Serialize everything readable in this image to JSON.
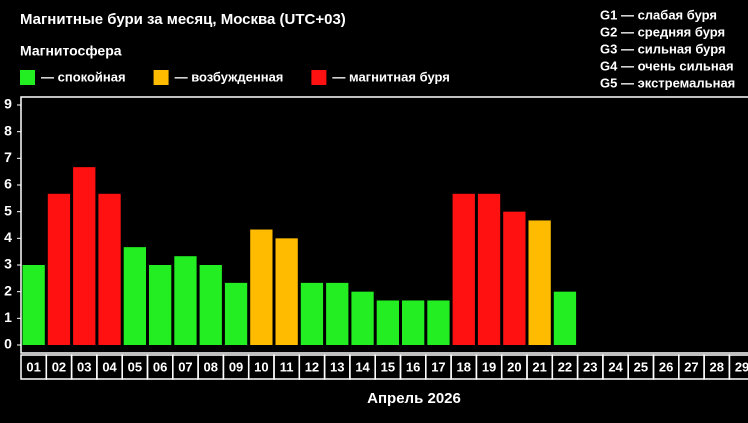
{
  "chart_data": {
    "type": "bar",
    "title": "Магнитные бури за месяц, Москва (UTC+03)",
    "subtitle": "Магнитосфера",
    "legend": [
      {
        "label": "— спокойная",
        "color": "#22ee22"
      },
      {
        "label": "— возбужденная",
        "color": "#ffbb00"
      },
      {
        "label": "— магнитная буря",
        "color": "#ff1111"
      }
    ],
    "scale_notes": [
      "G1 — слабая буря",
      "G2 — средняя буря",
      "G3 — сильная буря",
      "G4 — очень сильная",
      "G5 — экстремальная"
    ],
    "xlabel": "Апрель 2026",
    "categories": [
      "01",
      "02",
      "03",
      "04",
      "05",
      "06",
      "07",
      "08",
      "09",
      "10",
      "11",
      "12",
      "13",
      "14",
      "15",
      "16",
      "17",
      "18",
      "19",
      "20",
      "21",
      "22",
      "23",
      "24",
      "25",
      "26",
      "27",
      "28",
      "29"
    ],
    "values": [
      3,
      5.67,
      6.67,
      5.67,
      3.67,
      3,
      3.33,
      3,
      2.33,
      4.33,
      4,
      2.33,
      2.33,
      2,
      1.67,
      1.67,
      1.67,
      5.67,
      5.67,
      5,
      4.67,
      2,
      null,
      null,
      null,
      null,
      null,
      null,
      null
    ],
    "colors": [
      "#22ee22",
      "#ff1111",
      "#ff1111",
      "#ff1111",
      "#22ee22",
      "#22ee22",
      "#22ee22",
      "#22ee22",
      "#22ee22",
      "#ffbb00",
      "#ffbb00",
      "#22ee22",
      "#22ee22",
      "#22ee22",
      "#22ee22",
      "#22ee22",
      "#22ee22",
      "#ff1111",
      "#ff1111",
      "#ff1111",
      "#ffbb00",
      "#22ee22",
      null,
      null,
      null,
      null,
      null,
      null,
      null
    ],
    "ylim": [
      -0.3,
      9.3
    ],
    "yticks": [
      0,
      1,
      2,
      3,
      4,
      5,
      6,
      7,
      8,
      9
    ],
    "grid": false
  }
}
